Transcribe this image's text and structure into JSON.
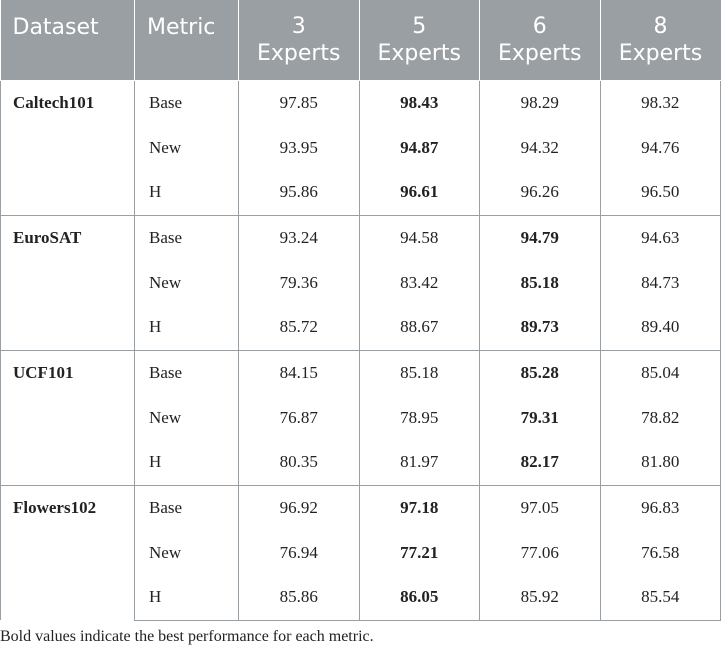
{
  "table": {
    "headers": {
      "dataset": "Dataset",
      "metric": "Metric",
      "experts": [
        {
          "line1": "3",
          "line2": "Experts"
        },
        {
          "line1": "5",
          "line2": "Experts"
        },
        {
          "line1": "6",
          "line2": "Experts"
        },
        {
          "line1": "8",
          "line2": "Experts"
        }
      ]
    },
    "groups": [
      {
        "dataset": "Caltech101",
        "rows": [
          {
            "metric": "Base",
            "values": [
              "97.85",
              "98.43",
              "98.29",
              "98.32"
            ],
            "best_index": 1
          },
          {
            "metric": "New",
            "values": [
              "93.95",
              "94.87",
              "94.32",
              "94.76"
            ],
            "best_index": 1
          },
          {
            "metric": "H",
            "values": [
              "95.86",
              "96.61",
              "96.26",
              "96.50"
            ],
            "best_index": 1
          }
        ]
      },
      {
        "dataset": "EuroSAT",
        "rows": [
          {
            "metric": "Base",
            "values": [
              "93.24",
              "94.58",
              "94.79",
              "94.63"
            ],
            "best_index": 2
          },
          {
            "metric": "New",
            "values": [
              "79.36",
              "83.42",
              "85.18",
              "84.73"
            ],
            "best_index": 2
          },
          {
            "metric": "H",
            "values": [
              "85.72",
              "88.67",
              "89.73",
              "89.40"
            ],
            "best_index": 2
          }
        ]
      },
      {
        "dataset": "UCF101",
        "rows": [
          {
            "metric": "Base",
            "values": [
              "84.15",
              "85.18",
              "85.28",
              "85.04"
            ],
            "best_index": 2
          },
          {
            "metric": "New",
            "values": [
              "76.87",
              "78.95",
              "79.31",
              "78.82"
            ],
            "best_index": 2
          },
          {
            "metric": "H",
            "values": [
              "80.35",
              "81.97",
              "82.17",
              "81.80"
            ],
            "best_index": 2
          }
        ]
      },
      {
        "dataset": "Flowers102",
        "rows": [
          {
            "metric": "Base",
            "values": [
              "96.92",
              "97.18",
              "97.05",
              "96.83"
            ],
            "best_index": 1
          },
          {
            "metric": "New",
            "values": [
              "76.94",
              "77.21",
              "77.06",
              "76.58"
            ],
            "best_index": 1
          },
          {
            "metric": "H",
            "values": [
              "85.86",
              "86.05",
              "85.92",
              "85.54"
            ],
            "best_index": 1
          }
        ]
      }
    ]
  },
  "footnote": "Bold values indicate the best performance for each metric.",
  "colors": {
    "header_bg": "#9a9fa3",
    "header_text": "#ffffff",
    "border": "#9a9fa3",
    "body_text": "#222222"
  }
}
